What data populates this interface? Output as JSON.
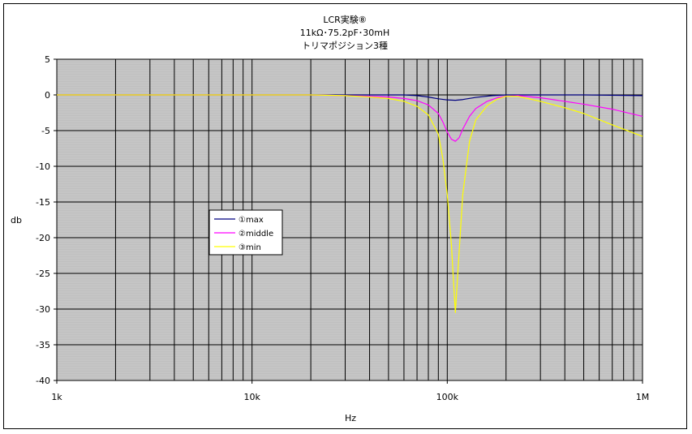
{
  "chart_data": {
    "type": "line",
    "title": [
      "LCR実験⑧",
      "11kΩ･75.2pF･30mH",
      "トリマポジション3種"
    ],
    "xlabel": "Hz",
    "ylabel": "db",
    "xscale": "log",
    "xlim": [
      1000,
      1000000
    ],
    "ylim": [
      -40,
      5
    ],
    "xticks": [
      {
        "value": 1000,
        "label": "1k"
      },
      {
        "value": 10000,
        "label": "10k"
      },
      {
        "value": 100000,
        "label": "100k"
      },
      {
        "value": 1000000,
        "label": "1M"
      }
    ],
    "yticks": [
      {
        "value": 5,
        "label": "5"
      },
      {
        "value": 0,
        "label": "0"
      },
      {
        "value": -5,
        "label": "-5"
      },
      {
        "value": -10,
        "label": "-10"
      },
      {
        "value": -15,
        "label": "-15"
      },
      {
        "value": -20,
        "label": "-20"
      },
      {
        "value": -25,
        "label": "-25"
      },
      {
        "value": -30,
        "label": "-30"
      },
      {
        "value": -35,
        "label": "-35"
      },
      {
        "value": -40,
        "label": "-40"
      }
    ],
    "grid": true,
    "plot_background": "#c0c0c0",
    "legend_position": "left-middle",
    "series": [
      {
        "name": "①max",
        "color": "#000080",
        "points": [
          [
            1000,
            0
          ],
          [
            20000,
            0
          ],
          [
            40000,
            0
          ],
          [
            60000,
            0
          ],
          [
            70000,
            -0.1
          ],
          [
            80000,
            -0.3
          ],
          [
            90000,
            -0.55
          ],
          [
            100000,
            -0.7
          ],
          [
            110000,
            -0.75
          ],
          [
            120000,
            -0.65
          ],
          [
            140000,
            -0.35
          ],
          [
            170000,
            -0.1
          ],
          [
            200000,
            0
          ],
          [
            300000,
            0
          ],
          [
            500000,
            0
          ],
          [
            1000000,
            -0.1
          ]
        ]
      },
      {
        "name": "②middle",
        "color": "#ff00ff",
        "points": [
          [
            1000,
            0
          ],
          [
            20000,
            0
          ],
          [
            30000,
            -0.1
          ],
          [
            40000,
            -0.2
          ],
          [
            50000,
            -0.3
          ],
          [
            60000,
            -0.5
          ],
          [
            70000,
            -0.8
          ],
          [
            80000,
            -1.4
          ],
          [
            90000,
            -2.6
          ],
          [
            95000,
            -3.8
          ],
          [
            100000,
            -5.2
          ],
          [
            105000,
            -6.2
          ],
          [
            110000,
            -6.5
          ],
          [
            115000,
            -6.0
          ],
          [
            120000,
            -4.8
          ],
          [
            130000,
            -3.0
          ],
          [
            140000,
            -1.9
          ],
          [
            160000,
            -0.9
          ],
          [
            180000,
            -0.4
          ],
          [
            200000,
            -0.2
          ],
          [
            230000,
            -0.1
          ],
          [
            300000,
            -0.4
          ],
          [
            400000,
            -0.9
          ],
          [
            500000,
            -1.3
          ],
          [
            700000,
            -2.0
          ],
          [
            1000000,
            -3.0
          ]
        ]
      },
      {
        "name": "③min",
        "color": "#ffff00",
        "points": [
          [
            1000,
            0
          ],
          [
            20000,
            0
          ],
          [
            30000,
            -0.1
          ],
          [
            40000,
            -0.3
          ],
          [
            50000,
            -0.5
          ],
          [
            60000,
            -0.9
          ],
          [
            70000,
            -1.6
          ],
          [
            80000,
            -2.8
          ],
          [
            90000,
            -5.5
          ],
          [
            95000,
            -9.0
          ],
          [
            100000,
            -14.0
          ],
          [
            105000,
            -21.0
          ],
          [
            110000,
            -30.5
          ],
          [
            115000,
            -22.0
          ],
          [
            120000,
            -14.0
          ],
          [
            130000,
            -6.5
          ],
          [
            140000,
            -3.5
          ],
          [
            160000,
            -1.5
          ],
          [
            180000,
            -0.6
          ],
          [
            200000,
            -0.2
          ],
          [
            230000,
            -0.2
          ],
          [
            300000,
            -0.9
          ],
          [
            400000,
            -1.8
          ],
          [
            500000,
            -2.6
          ],
          [
            700000,
            -4.2
          ],
          [
            1000000,
            -5.8
          ]
        ]
      }
    ]
  }
}
